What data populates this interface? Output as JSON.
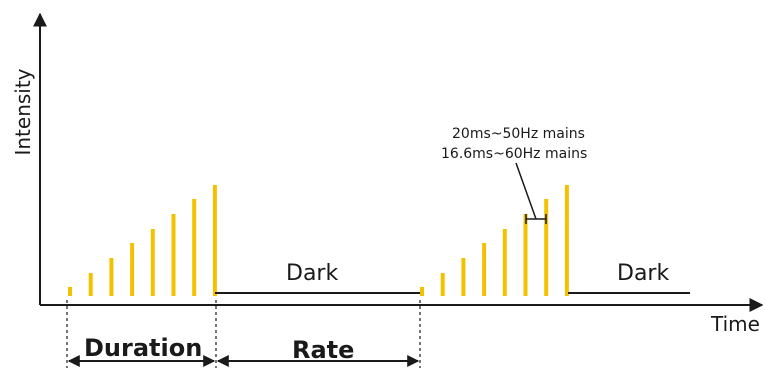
{
  "axes": {
    "y_label": "Intensity",
    "x_label": "Time"
  },
  "labels": {
    "dark_1": "Dark",
    "dark_2": "Dark",
    "duration": "Duration",
    "rate": "Rate"
  },
  "annotation": {
    "line1": "20ms~50Hz mains",
    "line2": "16.6ms~60Hz mains"
  },
  "colors": {
    "pulse": "#f2c200",
    "ink": "#1a1a1a"
  }
}
